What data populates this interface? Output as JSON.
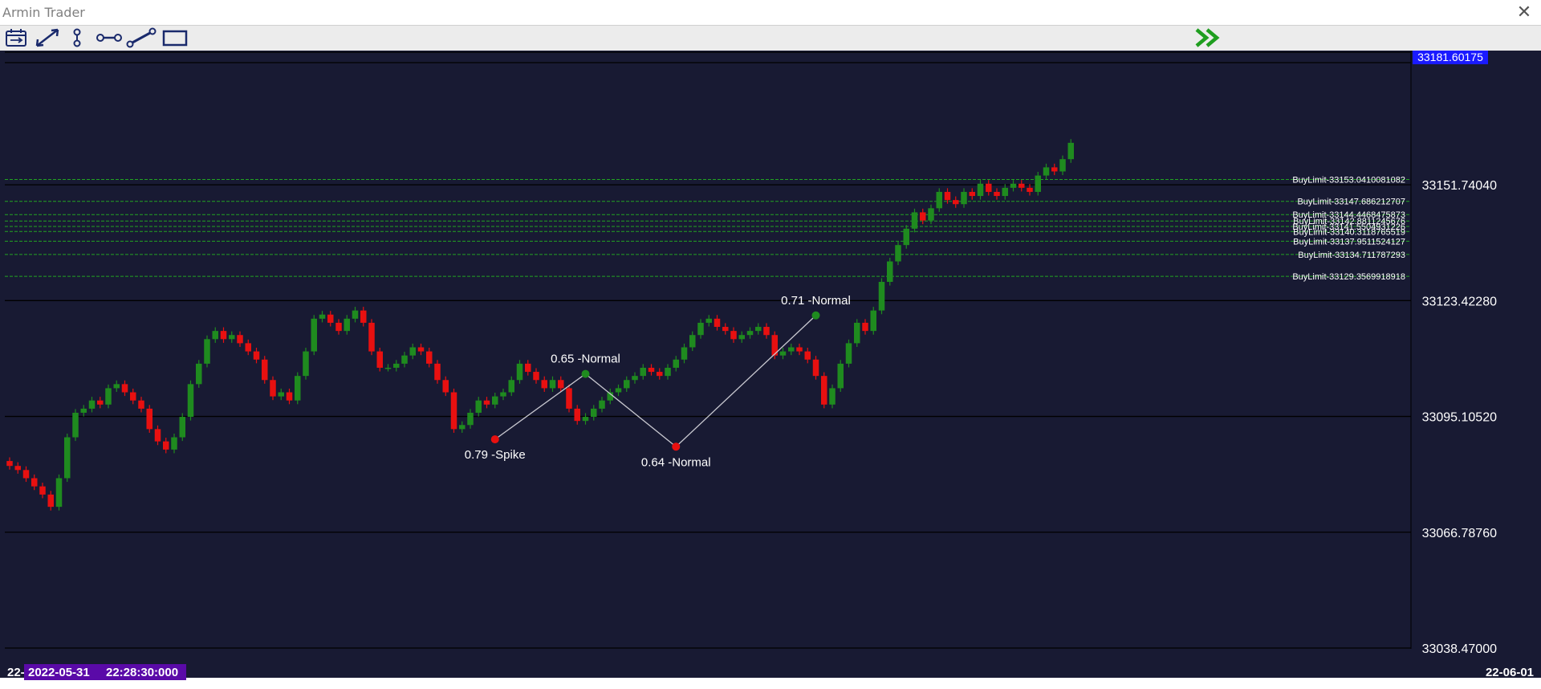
{
  "window": {
    "title": "Armin Trader",
    "close_glyph": "✕"
  },
  "toolbar": {
    "tools": [
      {
        "name": "calendar-icon"
      },
      {
        "name": "diagonal-line-icon"
      },
      {
        "name": "vertical-segment-icon"
      },
      {
        "name": "horizontal-segment-icon"
      },
      {
        "name": "trend-segment-icon"
      },
      {
        "name": "rectangle-icon"
      }
    ],
    "forward_icon": "double-chevron-right-icon",
    "forward_color": "#1f9e1f"
  },
  "colors": {
    "background": "#181a33",
    "grid": "#000000",
    "bull": "#1f8b1f",
    "bear": "#e81010",
    "text": "#ffffff",
    "buy_limit_line": "#22a322",
    "price_badge": "#1a1aff",
    "time_badge": "#5a0aa8"
  },
  "chart_data": {
    "type": "candlestick",
    "y_axis": {
      "min": 33038.47,
      "max": 33181.60175,
      "ticks": [
        "33181.60175",
        "33151.74040",
        "33123.42280",
        "33095.10520",
        "33066.78760",
        "33038.47000"
      ],
      "last_price_badge": "33181.60175"
    },
    "x_axis": {
      "left_label_prefix": "22-",
      "cursor_date": "2022-05-31",
      "cursor_time": "22:28:30:000",
      "right_label": "22-06-01"
    },
    "closes": [
      33083,
      33082,
      33080,
      33078,
      33076,
      33073,
      33080,
      33090,
      33096,
      33097,
      33099,
      33098,
      33102,
      33103,
      33101,
      33099,
      33097,
      33092,
      33089,
      33087,
      33090,
      33095,
      33103,
      33108,
      33114,
      33116,
      33114,
      33115,
      33113,
      33111,
      33109,
      33104,
      33100,
      33101,
      33099,
      33105,
      33111,
      33119,
      33120,
      33118,
      33116,
      33119,
      33121,
      33118,
      33111,
      33107,
      33107,
      33108,
      33110,
      33112,
      33111,
      33108,
      33104,
      33101,
      33092,
      33093,
      33096,
      33099,
      33098,
      33100,
      33101,
      33104,
      33108,
      33106,
      33104,
      33102,
      33104,
      33102,
      33097,
      33094,
      33095,
      33097,
      33099,
      33101,
      33102,
      33104,
      33105,
      33107,
      33106,
      33105,
      33107,
      33109,
      33112,
      33115,
      33118,
      33119,
      33117,
      33116,
      33114,
      33115,
      33116,
      33117,
      33115,
      33110,
      33111,
      33112,
      33111,
      33109,
      33105,
      33098,
      33102,
      33108,
      33113,
      33118,
      33116,
      33121,
      33128,
      33133,
      33137,
      33141,
      33145,
      33143,
      33146,
      33150,
      33148,
      33147,
      33150,
      33149,
      33152,
      33150,
      33149,
      33151,
      33152,
      33151,
      33150,
      33154,
      33156,
      33155,
      33158,
      33162
    ],
    "buy_limits": [
      {
        "label": "BuyLimit-33153.0410081082",
        "price": 33153.0410081082
      },
      {
        "label": "BuyLimit-33147.686212707",
        "price": 33147.686212707
      },
      {
        "label": "BuyLimit-33144.4468475873",
        "price": 33144.4468475873
      },
      {
        "label": "BuyLimit-33142.8811245676",
        "price": 33142.8811245676
      },
      {
        "label": "BuyLimit-33141.5504931226",
        "price": 33141.5504931226
      },
      {
        "label": "BuyLimit-33140.3118765519",
        "price": 33140.3118765519
      },
      {
        "label": "BuyLimit-33137.9511524127",
        "price": 33137.9511524127
      },
      {
        "label": "BuyLimit-33134.711787293",
        "price": 33134.711787293
      },
      {
        "label": "BuyLimit-33129.3569918918",
        "price": 33129.3569918918
      }
    ],
    "zigzag": [
      {
        "bar": 59,
        "price": 33089.5,
        "label": "0.79 -Spike",
        "color": "#e81010",
        "label_pos": "below"
      },
      {
        "bar": 70,
        "price": 33105.5,
        "label": "0.65 -Normal",
        "color": "#1f8b1f",
        "label_pos": "above"
      },
      {
        "bar": 81,
        "price": 33087.7,
        "label": "0.64 -Normal",
        "color": "#e81010",
        "label_pos": "below"
      },
      {
        "bar": 98,
        "price": 33119.8,
        "label": "0.71 -Normal",
        "color": "#1f8b1f",
        "label_pos": "above"
      }
    ]
  }
}
